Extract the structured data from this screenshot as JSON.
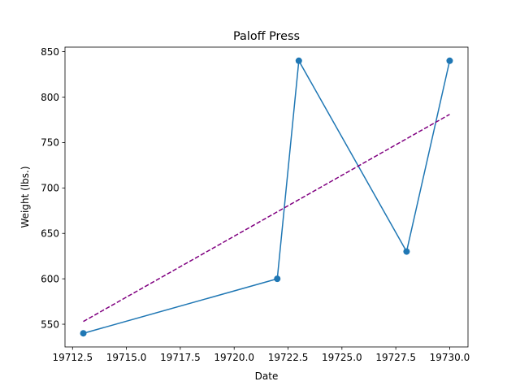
{
  "chart_data": {
    "type": "line",
    "title": "Paloff Press",
    "xlabel": "Date",
    "ylabel": "Weight (lbs.)",
    "xlim": [
      19712.15,
      19730.85
    ],
    "ylim": [
      525,
      855
    ],
    "x_ticks": [
      19712.5,
      19715.0,
      19717.5,
      19720.0,
      19722.5,
      19725.0,
      19727.5,
      19730.0
    ],
    "x_tick_labels": [
      "19712.5",
      "19715.0",
      "19717.5",
      "19720.0",
      "19722.5",
      "19725.0",
      "19727.5",
      "19730.0"
    ],
    "y_ticks": [
      550,
      600,
      650,
      700,
      750,
      800,
      850
    ],
    "y_tick_labels": [
      "550",
      "600",
      "650",
      "700",
      "750",
      "800",
      "850"
    ],
    "grid": false,
    "legend": "none",
    "series": [
      {
        "x": [
          19713,
          19722,
          19723,
          19728,
          19730
        ],
        "y": [
          540,
          600,
          840,
          630,
          840
        ],
        "color": "#1f77b4",
        "style": "solid",
        "markers": true
      },
      {
        "x": [
          19713,
          19730
        ],
        "y": [
          553,
          781
        ],
        "color": "#800080",
        "style": "dashed",
        "markers": false
      }
    ]
  }
}
